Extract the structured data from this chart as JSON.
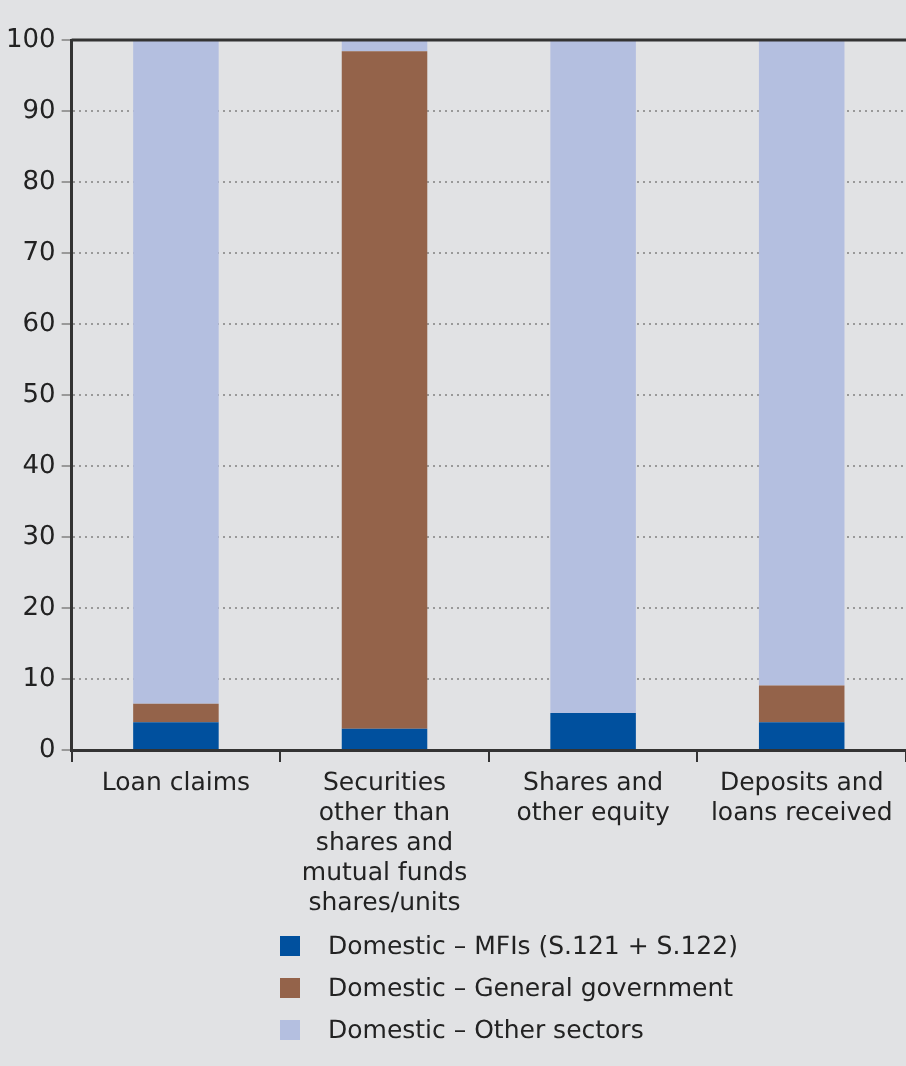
{
  "chart_data": {
    "type": "bar",
    "stacked": true,
    "categories": [
      "Loan claims",
      "Securities other than shares and mutual funds shares/units",
      "Shares and other equity",
      "Deposits and loans received"
    ],
    "series": [
      {
        "name": "Domestic – MFIs (S.121 + S.122)",
        "color": "#00509e",
        "values": [
          3.9,
          3.0,
          5.2,
          3.9
        ]
      },
      {
        "name": "Domestic – General government",
        "color": "#94634a",
        "values": [
          2.6,
          95.4,
          0,
          5.2
        ]
      },
      {
        "name": "Domestic – Other sectors",
        "color": "#b4bfe0",
        "values": [
          93.5,
          1.6,
          94.8,
          90.9
        ]
      }
    ],
    "ylim": [
      0,
      100
    ],
    "yticks": [
      0,
      10,
      20,
      30,
      40,
      50,
      60,
      70,
      80,
      90,
      100
    ],
    "grid": "y",
    "legend": "bottom"
  }
}
